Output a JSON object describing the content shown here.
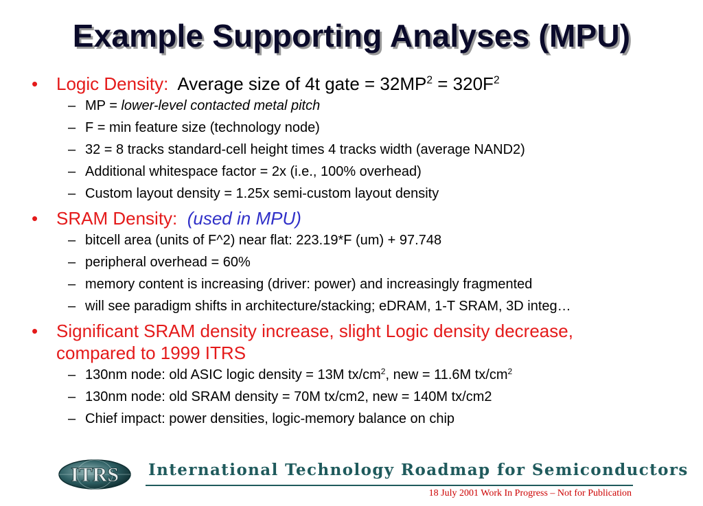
{
  "slide": {
    "title": "Example Supporting Analyses (MPU)"
  },
  "sections": [
    {
      "label": "Logic Density:",
      "text_before_sup": "Average size of 4t gate = 32MP",
      "sup1": "2",
      "text_mid": " = 320F",
      "sup2": "2",
      "items": [
        {
          "prefix": "MP = ",
          "italic": "lower-level contacted metal pitch"
        },
        {
          "text": "F = min feature size (technology node)"
        },
        {
          "text": "32 = 8 tracks standard-cell height times 4 tracks width  (average NAND2)"
        },
        {
          "text": "Additional whitespace factor = 2x  (i.e., 100% overhead)"
        },
        {
          "text": "Custom layout density = 1.25x semi-custom layout density"
        }
      ]
    },
    {
      "label": "SRAM Density:",
      "note": "(used in MPU)",
      "items": [
        {
          "text": "bitcell area (units of F^2) near flat:   223.19*F (um) + 97.748"
        },
        {
          "text": "peripheral overhead = 60%"
        },
        {
          "text": "memory content is increasing (driver: power) and increasingly fragmented"
        },
        {
          "text": "will see paradigm shifts in architecture/stacking;  eDRAM, 1-T SRAM, 3D integ…"
        }
      ]
    },
    {
      "label": "Significant SRAM density increase, slight Logic density decrease, compared to 1999 ITRS",
      "items": [
        {
          "part1": "130nm node:  old ASIC logic density = 13M tx/cm",
          "sup1": "2",
          "part2": ", new = 11.6M tx/cm",
          "sup2": "2"
        },
        {
          "text": "130nm node:  old SRAM density = 70M tx/cm2, new = 140M tx/cm2"
        },
        {
          "text": "Chief impact:  power densities, logic-memory balance on chip"
        }
      ]
    }
  ],
  "footer": {
    "logo_text": "ITRS",
    "org_name": "International Technology Roadmap for Semiconductors",
    "note": "18 July 2001 Work In Progress – Not for Publication"
  },
  "colors": {
    "accent_red": "#e41a1a",
    "accent_blue": "#3030c8",
    "footer_teal": "#1f5a5c"
  },
  "icons": {
    "bullet": "bullet-dot-icon",
    "dash": "dash-icon",
    "logo": "itrs-globe-logo"
  }
}
